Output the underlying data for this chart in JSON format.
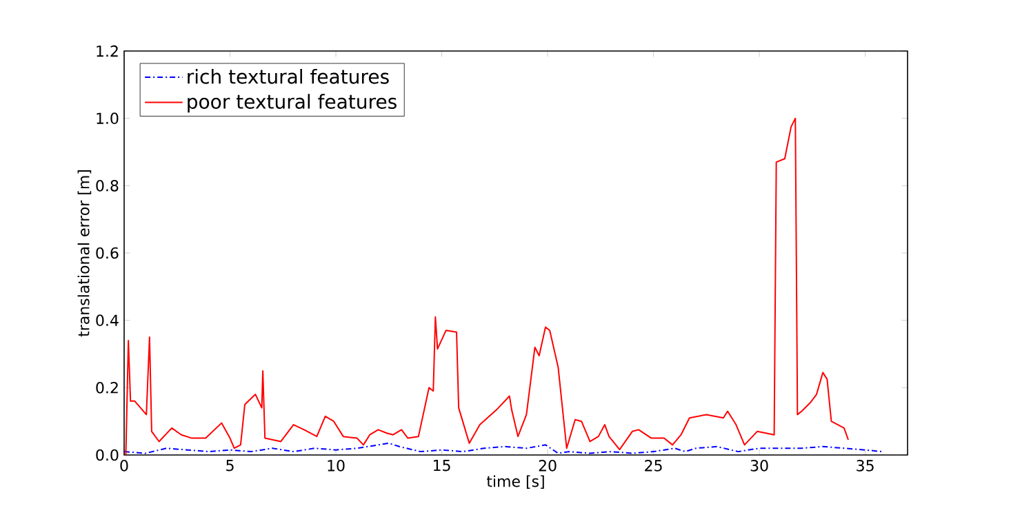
{
  "chart_data": {
    "type": "line",
    "xlabel": "time [s]",
    "ylabel": "translational error [m]",
    "xlim": [
      0,
      37
    ],
    "ylim": [
      0,
      1.2
    ],
    "xticks": [
      0,
      5,
      10,
      15,
      20,
      25,
      30,
      35
    ],
    "yticks": [
      {
        "value": 0,
        "label": "0.0"
      },
      {
        "value": 0.2,
        "label": "0.2"
      },
      {
        "value": 0.4,
        "label": "0.4"
      },
      {
        "value": 0.6,
        "label": "0.6"
      },
      {
        "value": 0.8,
        "label": "0.8"
      },
      {
        "value": 1.0,
        "label": "1.0"
      },
      {
        "value": 1.2,
        "label": "1.2"
      }
    ],
    "legend": "top left",
    "grid": false,
    "series": [
      {
        "name": "rich textural features",
        "color": "#0000ff",
        "line_style": "dashdot",
        "x": [
          0,
          1,
          2,
          3,
          4,
          5,
          6,
          7,
          8,
          9,
          10,
          11,
          12,
          12.5,
          13,
          14,
          15,
          16,
          17,
          18,
          19,
          19.9,
          20.5,
          21,
          22,
          23,
          24,
          25,
          26,
          26.5,
          27,
          28,
          29,
          30,
          31,
          32,
          33,
          34,
          35,
          35.8
        ],
        "values": [
          0.01,
          0.005,
          0.02,
          0.015,
          0.01,
          0.015,
          0.01,
          0.02,
          0.01,
          0.02,
          0.015,
          0.02,
          0.03,
          0.035,
          0.025,
          0.01,
          0.015,
          0.01,
          0.02,
          0.025,
          0.02,
          0.03,
          0.005,
          0.01,
          0.005,
          0.01,
          0.005,
          0.01,
          0.02,
          0.01,
          0.02,
          0.025,
          0.01,
          0.02,
          0.02,
          0.02,
          0.025,
          0.02,
          0.015,
          0.01
        ]
      },
      {
        "name": "poor textural features",
        "color": "#ff0000",
        "line_style": "solid",
        "x": [
          0.08,
          0.2,
          0.3,
          0.5,
          1.05,
          1.2,
          1.3,
          1.65,
          2.25,
          2.7,
          3.2,
          3.85,
          4.6,
          5.0,
          5.2,
          5.5,
          5.7,
          6.2,
          6.5,
          6.55,
          6.65,
          7.4,
          8.0,
          8.5,
          9.1,
          9.5,
          9.9,
          10.35,
          11.0,
          11.3,
          11.6,
          12.0,
          12.4,
          12.7,
          13.1,
          13.4,
          13.9,
          14.4,
          14.6,
          14.7,
          14.8,
          15.2,
          15.7,
          15.8,
          16.3,
          16.8,
          17.6,
          18.2,
          18.3,
          18.6,
          19.0,
          19.4,
          19.6,
          19.9,
          20.1,
          20.5,
          20.9,
          21.3,
          21.6,
          22.0,
          22.4,
          22.7,
          22.9,
          23.4,
          24.0,
          24.3,
          24.9,
          25.5,
          25.9,
          26.3,
          26.7,
          27.5,
          28.3,
          28.5,
          28.9,
          29.3,
          29.9,
          30.7,
          30.8,
          31.2,
          31.5,
          31.7,
          31.8,
          32.0,
          32.4,
          32.7,
          33.0,
          33.2,
          33.4,
          34.0,
          34.2
        ],
        "values": [
          0.0,
          0.34,
          0.16,
          0.16,
          0.12,
          0.35,
          0.07,
          0.04,
          0.08,
          0.06,
          0.05,
          0.05,
          0.095,
          0.05,
          0.02,
          0.03,
          0.15,
          0.18,
          0.14,
          0.25,
          0.05,
          0.04,
          0.09,
          0.075,
          0.055,
          0.115,
          0.1,
          0.055,
          0.05,
          0.03,
          0.06,
          0.075,
          0.065,
          0.06,
          0.075,
          0.05,
          0.055,
          0.2,
          0.19,
          0.41,
          0.315,
          0.37,
          0.365,
          0.14,
          0.035,
          0.09,
          0.135,
          0.175,
          0.135,
          0.055,
          0.12,
          0.32,
          0.295,
          0.38,
          0.37,
          0.26,
          0.02,
          0.105,
          0.1,
          0.04,
          0.055,
          0.09,
          0.055,
          0.016,
          0.07,
          0.075,
          0.05,
          0.05,
          0.03,
          0.06,
          0.11,
          0.12,
          0.11,
          0.13,
          0.09,
          0.03,
          0.07,
          0.06,
          0.87,
          0.88,
          0.975,
          1.0,
          0.12,
          0.13,
          0.155,
          0.18,
          0.245,
          0.225,
          0.1,
          0.08,
          0.045
        ]
      }
    ]
  }
}
